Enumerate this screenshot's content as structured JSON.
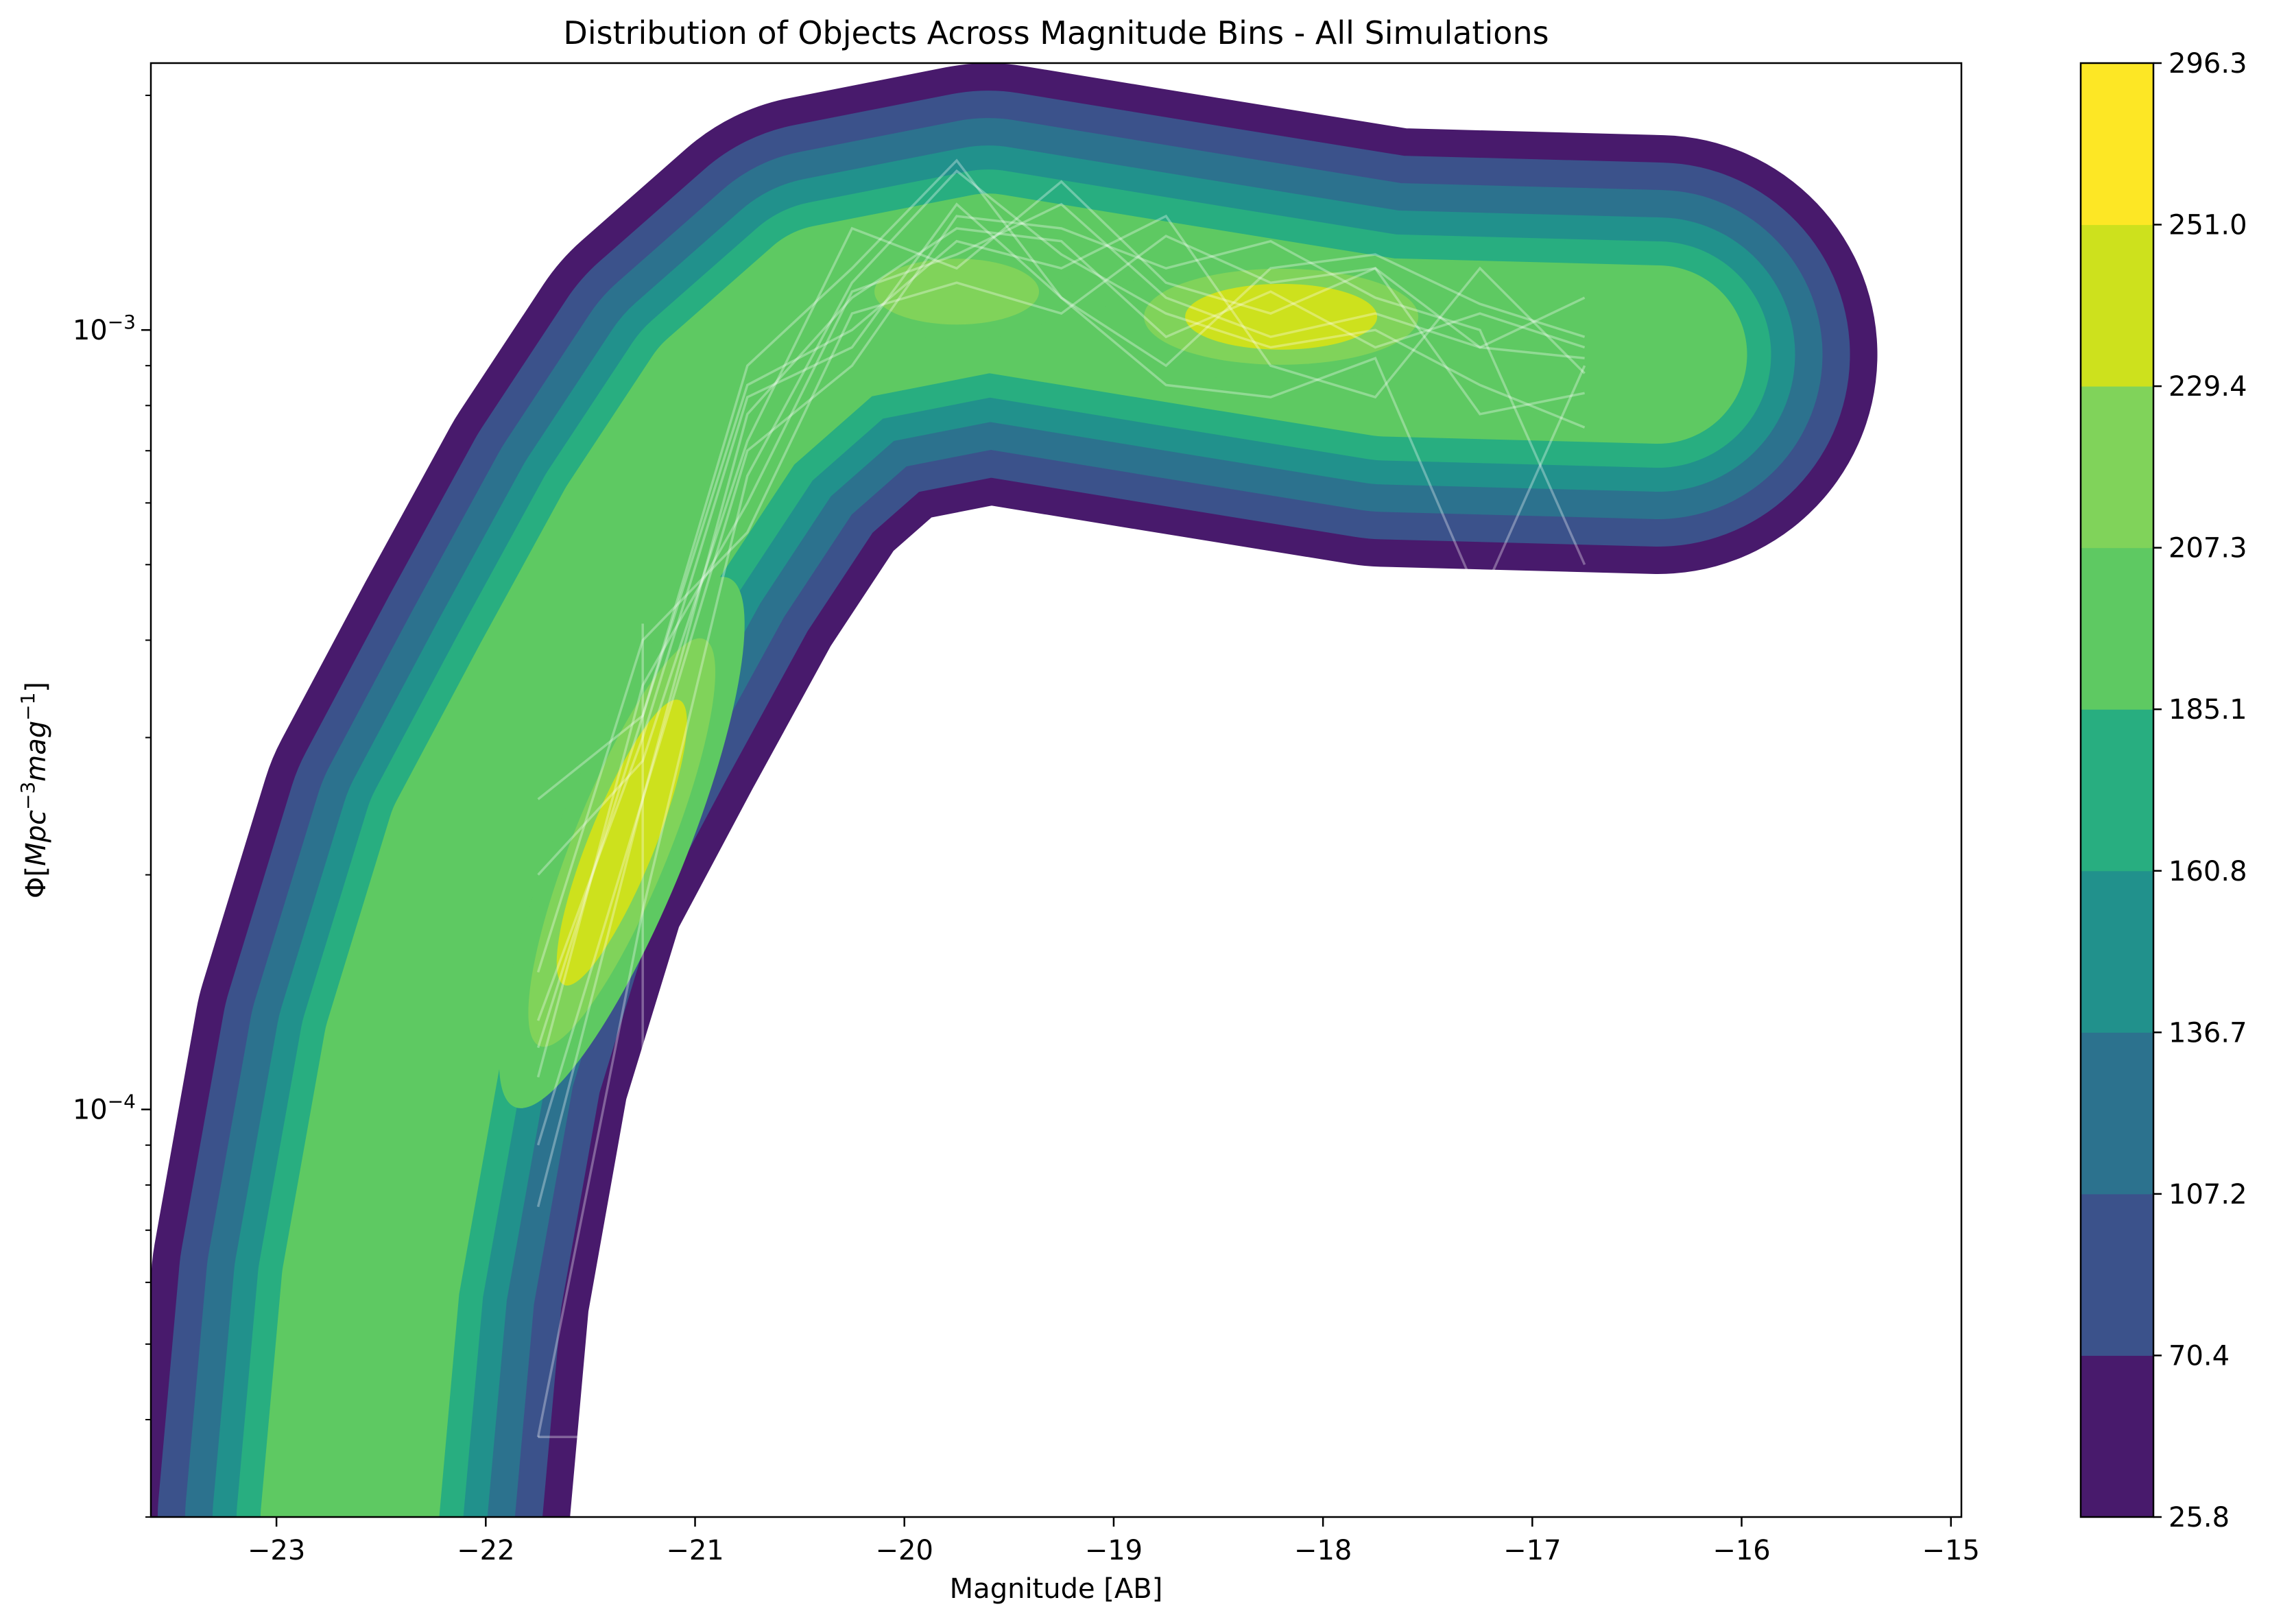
{
  "chart_data": {
    "type": "contour-density",
    "title": "Distribution of Objects Across Magnitude Bins - All Simulations",
    "xlabel": "Magnitude [AB]",
    "ylabel": "Φ[Mpc^−3 mag^−1]",
    "ylabel_parts": {
      "lead": "Φ[",
      "base1": "Mpc",
      "sup1": "−3",
      "base2": "mag",
      "sup2": "−1",
      "tail": "]"
    },
    "x_range": [
      -23.6,
      -14.95
    ],
    "y_range": [
      3e-05,
      0.0022
    ],
    "y_scale": "log",
    "x_ticks": [
      -23,
      -22,
      -21,
      -20,
      -19,
      -18,
      -17,
      -16,
      -15
    ],
    "x_tick_labels": [
      "−23",
      "−22",
      "−21",
      "−20",
      "−19",
      "−18",
      "−17",
      "−16",
      "−15"
    ],
    "y_ticks": [
      {
        "value": 0.0001,
        "base": "10",
        "exp": "−4"
      },
      {
        "value": 0.001,
        "base": "10",
        "exp": "−3"
      }
    ],
    "grid": false,
    "colormap": "viridis",
    "colorbar": {
      "levels": [
        25.8,
        70.4,
        107.2,
        136.7,
        160.8,
        185.1,
        207.3,
        229.4,
        251.0,
        296.3
      ],
      "labels": [
        "25.8",
        "70.4",
        "107.2",
        "136.7",
        "160.8",
        "185.1",
        "207.3",
        "229.4",
        "251.0",
        "296.3"
      ],
      "colors": [
        "#481a6c",
        "#3b528b",
        "#2c728e",
        "#21918c",
        "#28ae80",
        "#5ec962",
        "#80d35a",
        "#cde11d",
        "#fde725"
      ]
    },
    "density_ridge": [
      {
        "x": -22.65,
        "y": 3e-05
      },
      {
        "x": -22.55,
        "y": 6e-05
      },
      {
        "x": -22.35,
        "y": 0.00012
      },
      {
        "x": -22.05,
        "y": 0.00022
      },
      {
        "x": -21.65,
        "y": 0.00035
      },
      {
        "x": -21.25,
        "y": 0.00055
      },
      {
        "x": -20.85,
        "y": 0.0008
      },
      {
        "x": -20.35,
        "y": 0.00105
      },
      {
        "x": -19.6,
        "y": 0.00115
      },
      {
        "x": -18.7,
        "y": 0.00105
      },
      {
        "x": -17.7,
        "y": 0.00095
      },
      {
        "x": -16.4,
        "y": 0.00093
      }
    ],
    "peaks": [
      {
        "x": -21.35,
        "y": 0.00022,
        "level": 296.3
      },
      {
        "x": -18.2,
        "y": 0.00104,
        "level": 296.3
      },
      {
        "x": -19.75,
        "y": 0.00112,
        "level": 251.0
      }
    ],
    "series": [
      {
        "x": [
          -21.75,
          -21.25,
          -20.75,
          -20.25,
          -19.75,
          -19.25,
          -18.75,
          -18.25,
          -17.75,
          -17.25,
          -16.75
        ],
        "y": [
          3.8e-05,
          0.00018,
          0.00065,
          0.00115,
          0.0016,
          0.00125,
          0.00105,
          0.00095,
          0.001,
          0.00085,
          0.00075
        ]
      },
      {
        "x": [
          -21.75,
          -21.25,
          -20.75,
          -20.25,
          -19.75,
          -19.25,
          -18.75,
          -18.25,
          -17.75,
          -17.25,
          -16.75
        ],
        "y": [
          7.5e-05,
          0.00025,
          0.00078,
          0.0011,
          0.00135,
          0.0013,
          0.00098,
          0.00112,
          0.00095,
          0.00105,
          0.00095
        ]
      },
      {
        "x": [
          -21.75,
          -21.25,
          -20.75,
          -20.25,
          -19.75,
          -19.25,
          -18.75,
          -18.25,
          -17.75,
          -17.25,
          -16.75
        ],
        "y": [
          0.00012,
          0.00032,
          0.0009,
          0.0012,
          0.00165,
          0.0011,
          0.00085,
          0.00082,
          0.00092,
          0.00045,
          0.0009
        ]
      },
      {
        "x": [
          -21.75,
          -21.25,
          -20.75,
          -20.25,
          -19.75,
          -19.25,
          -18.75,
          -18.25,
          -17.75,
          -17.25,
          -16.75
        ],
        "y": [
          0.00015,
          0.0004,
          0.00055,
          0.00105,
          0.00115,
          0.00105,
          0.00132,
          0.00115,
          0.0012,
          0.00078,
          0.00083
        ]
      },
      {
        "x": [
          -21.75,
          -21.25,
          -20.75,
          -20.25,
          -19.75,
          -19.25,
          -18.75,
          -18.25,
          -17.75,
          -17.25,
          -16.75
        ],
        "y": [
          0.0002,
          0.00028,
          0.00072,
          0.00135,
          0.0012,
          0.00155,
          0.00115,
          0.00105,
          0.0012,
          0.00095,
          0.0011
        ]
      },
      {
        "x": [
          -21.75,
          -21.25,
          -20.75,
          -20.25,
          -19.75,
          -19.25,
          -18.75,
          -18.25,
          -17.75,
          -17.25,
          -16.75
        ],
        "y": [
          0.00025,
          0.00032,
          0.00085,
          0.001,
          0.0013,
          0.0012,
          0.0014,
          0.0009,
          0.00082,
          0.0012,
          0.00088
        ]
      },
      {
        "x": [
          -21.75,
          -21.25,
          -20.75,
          -20.25,
          -19.75,
          -19.25,
          -18.75,
          -18.25,
          -17.75,
          -17.25,
          -16.75
        ],
        "y": [
          9e-05,
          0.00025,
          0.0007,
          0.0009,
          0.0014,
          0.00135,
          0.0012,
          0.0013,
          0.0011,
          0.001,
          0.0005
        ]
      },
      {
        "x": [
          -21.75,
          -21.25,
          -20.75,
          -20.25,
          -19.75,
          -19.25,
          -18.75,
          -18.25,
          -17.75,
          -17.25,
          -16.75
        ],
        "y": [
          0.00011,
          0.00035,
          0.0006,
          0.00112,
          0.00125,
          0.00145,
          0.0011,
          0.00098,
          0.00105,
          0.00095,
          0.00092
        ]
      },
      {
        "x": [
          -21.75,
          -21.25,
          -21.25,
          -21.25,
          -21.25
        ],
        "y": [
          3.8e-05,
          3.8e-05,
          8e-05,
          0.0002,
          0.00042
        ]
      },
      {
        "x": [
          -21.75,
          -21.25,
          -20.75,
          -20.25,
          -19.75,
          -19.25,
          -18.75,
          -18.25,
          -17.75,
          -17.25,
          -16.75
        ],
        "y": [
          0.00013,
          0.0003,
          0.00082,
          0.00095,
          0.00145,
          0.0011,
          0.0009,
          0.0012,
          0.00125,
          0.00108,
          0.00098
        ]
      }
    ]
  }
}
